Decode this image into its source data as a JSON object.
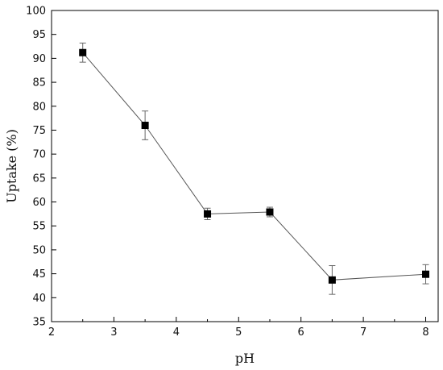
{
  "chart_data": {
    "type": "line",
    "xlabel": "pH",
    "ylabel": "Uptake (%)",
    "xlim": [
      2,
      8.2
    ],
    "ylim": [
      35,
      100
    ],
    "xticks": [
      2,
      3,
      4,
      5,
      6,
      7,
      8
    ],
    "yticks": [
      35,
      40,
      45,
      50,
      55,
      60,
      65,
      70,
      75,
      80,
      85,
      90,
      95,
      100
    ],
    "grid": false,
    "series": [
      {
        "x": [
          2.5,
          3.5,
          4.5,
          5.5,
          6.5,
          8
        ],
        "y": [
          91.2,
          76.0,
          57.5,
          57.9,
          43.7,
          44.9
        ],
        "error": [
          2.0,
          3.0,
          1.2,
          1.0,
          3.0,
          2.0
        ],
        "marker": "square",
        "line_color": "#555555",
        "marker_color": "#000000"
      }
    ]
  }
}
